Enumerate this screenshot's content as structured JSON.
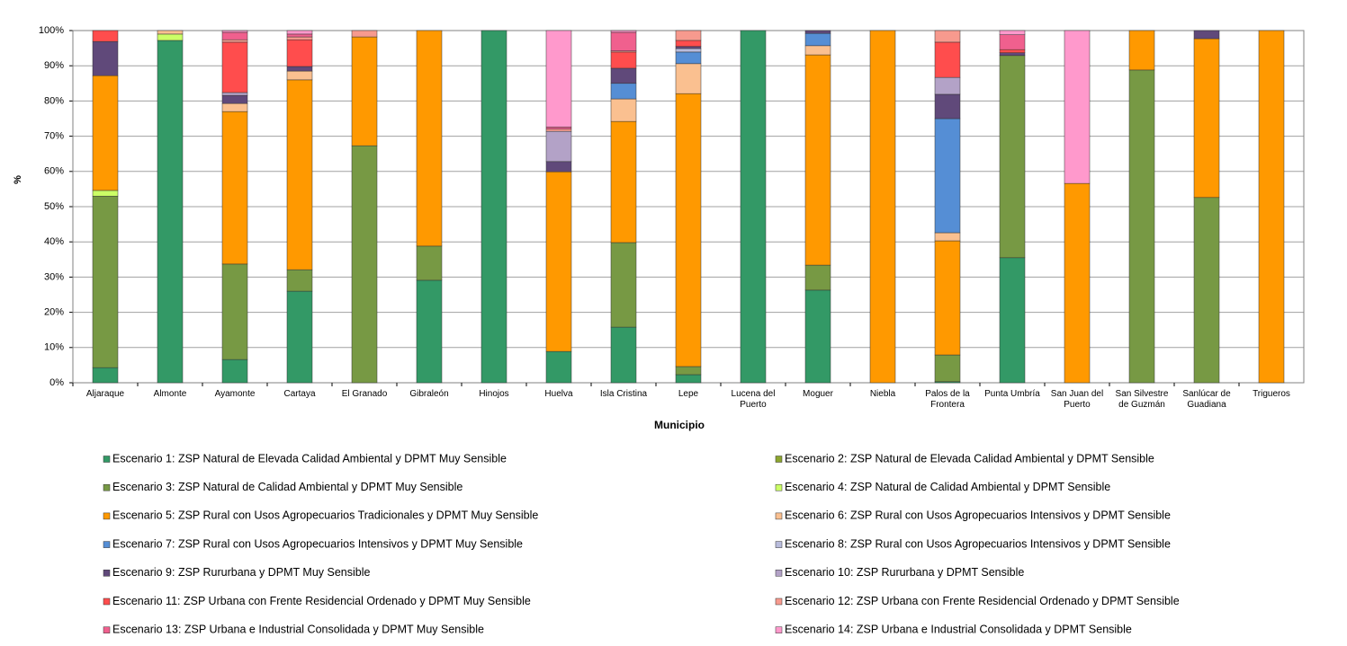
{
  "chart_data": {
    "type": "stacked_bar",
    "xlabel": "Municipio",
    "ylabel": "%",
    "ylim": [
      0,
      100
    ],
    "yticks": [
      {
        "value": 0,
        "label": "0%"
      },
      {
        "value": 10,
        "label": "10%"
      },
      {
        "value": 20,
        "label": "20%"
      },
      {
        "value": 30,
        "label": "30%"
      },
      {
        "value": 40,
        "label": "40%"
      },
      {
        "value": 50,
        "label": "50%"
      },
      {
        "value": 60,
        "label": "60%"
      },
      {
        "value": 70,
        "label": "70%"
      },
      {
        "value": 80,
        "label": "80%"
      },
      {
        "value": 90,
        "label": "90%"
      },
      {
        "value": 100,
        "label": "100%"
      }
    ],
    "grid": true,
    "categories": [
      "Aljaraque",
      "Almonte",
      "Ayamonte",
      "Cartaya",
      "El Granado",
      "Gibraleón",
      "Hinojos",
      "Huelva",
      "Isla Cristina",
      "Lepe",
      "Lucena del Puerto",
      "Moguer",
      "Niebla",
      "Palos de la Frontera",
      "Punta Umbría",
      "San Juan del Puerto",
      "San Silvestre de Guzmán",
      "Sanlúcar de Guadiana",
      "Trigueros"
    ],
    "series": [
      {
        "name": "Escenario 1: ZSP Natural de Elevada Calidad Ambiental y DPMT Muy Sensible",
        "color": "#339966",
        "values": [
          4.3,
          97.2,
          6.6,
          26.0,
          0,
          29.1,
          100,
          8.9,
          15.8,
          2.3,
          100,
          26.3,
          0,
          0.3,
          35.5,
          0,
          0,
          0,
          0
        ]
      },
      {
        "name": "Escenario 2: ZSP Natural de Elevada Calidad Ambiental y DPMT Sensible",
        "color": "#8da62f",
        "values": [
          0,
          0,
          0,
          0,
          0,
          0,
          0,
          0,
          0,
          0,
          0,
          0,
          0,
          0,
          0,
          0,
          0,
          0,
          0
        ]
      },
      {
        "name": "Escenario 3: ZSP Natural de Calidad Ambiental y DPMT Muy Sensible",
        "color": "#779944",
        "values": [
          48.7,
          0,
          27.1,
          6.1,
          67.3,
          9.7,
          0,
          0,
          24.0,
          2.3,
          0,
          7.1,
          0,
          7.6,
          57.4,
          0,
          88.8,
          52.6,
          0
        ]
      },
      {
        "name": "Escenario 4: ZSP Natural de Calidad Ambiental y DPMT Sensible",
        "color": "#ccff66",
        "values": [
          1.6,
          1.8,
          0,
          0,
          0,
          0,
          0,
          0,
          0,
          0,
          0,
          0,
          0,
          0,
          0,
          0,
          0,
          0,
          0
        ]
      },
      {
        "name": "Escenario 5: ZSP Rural con Usos Agropecuarios Tradicionales y DPMT Muy Sensible",
        "color": "#ff9900",
        "values": [
          32.6,
          0,
          43.3,
          53.9,
          30.9,
          61.2,
          0,
          51.0,
          34.4,
          77.5,
          0,
          59.7,
          100,
          32.4,
          0,
          56.6,
          11.2,
          45.1,
          100
        ]
      },
      {
        "name": "Escenario 6: ZSP Rural con Usos Agropecuarios Intensivos y DPMT Sensible",
        "color": "#fac090",
        "values": [
          0,
          1.0,
          2.3,
          2.5,
          0,
          0,
          0,
          0,
          6.4,
          8.5,
          0,
          2.6,
          0,
          2.3,
          0,
          0,
          0,
          0,
          0
        ]
      },
      {
        "name": "Escenario 7: ZSP Rural con Usos Agropecuarios Intensivos y DPMT Muy Sensible",
        "color": "#558ed5",
        "values": [
          0,
          0,
          0,
          0,
          0,
          0,
          0,
          0,
          4.4,
          3.3,
          0,
          3.5,
          0,
          32.4,
          0,
          0,
          0,
          0,
          0
        ]
      },
      {
        "name": "Escenario 8: ZSP Rural con Usos Agropecuarios Intensivos y DPMT Sensible",
        "color": "#b9bcdc",
        "values": [
          0,
          0,
          0,
          0,
          0,
          0,
          0,
          0,
          0,
          1.0,
          0,
          0,
          0,
          0,
          0,
          0,
          0,
          0,
          0
        ]
      },
      {
        "name": "Escenario 9: ZSP Rururbana y DPMT Muy Sensible",
        "color": "#60497a",
        "values": [
          9.7,
          0,
          2.3,
          1.3,
          0,
          0,
          0,
          2.9,
          4.3,
          0.6,
          0,
          0.8,
          0,
          6.9,
          0.8,
          0,
          0,
          2.3,
          0
        ]
      },
      {
        "name": "Escenario 10: ZSP Rururbana y DPMT Sensible",
        "color": "#b3a2c7",
        "values": [
          0,
          0,
          0.8,
          0,
          0,
          0,
          0,
          8.6,
          0,
          0,
          0,
          0,
          0,
          4.8,
          0,
          0,
          0,
          0,
          0
        ]
      },
      {
        "name": "Escenario 11: ZSP Urbana con Frente Residencial Ordenado y DPMT Muy Sensible",
        "color": "#ff4d4d",
        "values": [
          3.1,
          0,
          14.3,
          7.6,
          0,
          0,
          0,
          0,
          4.6,
          1.7,
          0,
          0,
          0,
          10.0,
          0.9,
          0,
          0,
          0,
          0
        ]
      },
      {
        "name": "Escenario 12: ZSP Urbana con Frente Residencial Ordenado y DPMT Sensible",
        "color": "#f79a8e",
        "values": [
          0,
          0,
          0.7,
          0.8,
          1.8,
          0,
          0,
          0.6,
          0.3,
          2.8,
          0,
          0,
          0,
          3.3,
          0,
          0,
          0,
          0,
          0
        ]
      },
      {
        "name": "Escenario 13: ZSP Urbana e Industrial Consolidada y DPMT Muy Sensible",
        "color": "#f0608e",
        "values": [
          0,
          0,
          2.1,
          0.8,
          0,
          0,
          0,
          0.6,
          5.3,
          0,
          0,
          0,
          0,
          0,
          4.2,
          0,
          0,
          0,
          0
        ]
      },
      {
        "name": "Escenario 14: ZSP Urbana e Industrial Consolidada y DPMT Sensible",
        "color": "#ff99cc",
        "values": [
          0,
          0,
          0.5,
          1.0,
          0,
          0,
          0,
          27.4,
          0.5,
          0,
          0,
          0,
          0,
          0,
          1.2,
          43.4,
          0,
          0,
          0
        ]
      }
    ]
  }
}
